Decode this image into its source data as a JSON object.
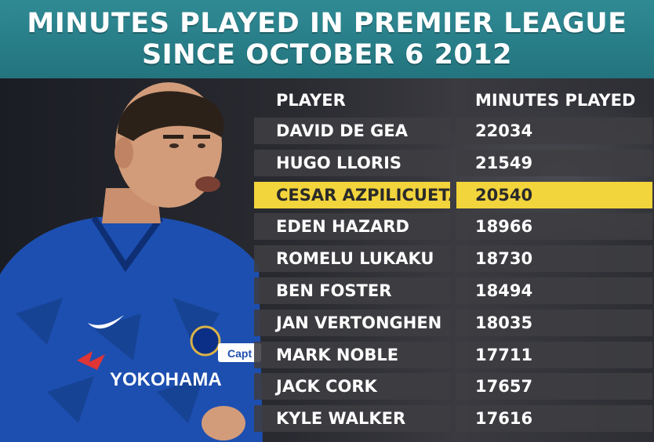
{
  "title_lines": [
    "MINUTES PLAYED IN PREMIER LEAGUE",
    "SINCE OCTOBER 6 2012"
  ],
  "colors": {
    "header_bg": "#2a7f89",
    "row_bg": "#3e3e42",
    "highlight_bg": "#f2d43c",
    "text": "#ffffff",
    "kit_blue": "#1d4fb0"
  },
  "photo": {
    "sponsor_text": "YOKOHAMA",
    "armband_text": "Capt"
  },
  "chart_data": {
    "type": "table",
    "columns": [
      "PLAYER",
      "MINUTES PLAYED"
    ],
    "rows": [
      {
        "player": "DAVID DE GEA",
        "minutes": "22034"
      },
      {
        "player": "HUGO LLORIS",
        "minutes": "21549"
      },
      {
        "player": "CESAR AZPILICUETA",
        "minutes": "20540",
        "highlighted": true
      },
      {
        "player": "EDEN HAZARD",
        "minutes": "18966"
      },
      {
        "player": "ROMELU LUKAKU",
        "minutes": "18730"
      },
      {
        "player": "BEN FOSTER",
        "minutes": "18494"
      },
      {
        "player": "JAN VERTONGHEN",
        "minutes": "18035"
      },
      {
        "player": "MARK NOBLE",
        "minutes": "17711"
      },
      {
        "player": "JACK CORK",
        "minutes": "17657"
      },
      {
        "player": "KYLE WALKER",
        "minutes": "17616"
      }
    ]
  }
}
